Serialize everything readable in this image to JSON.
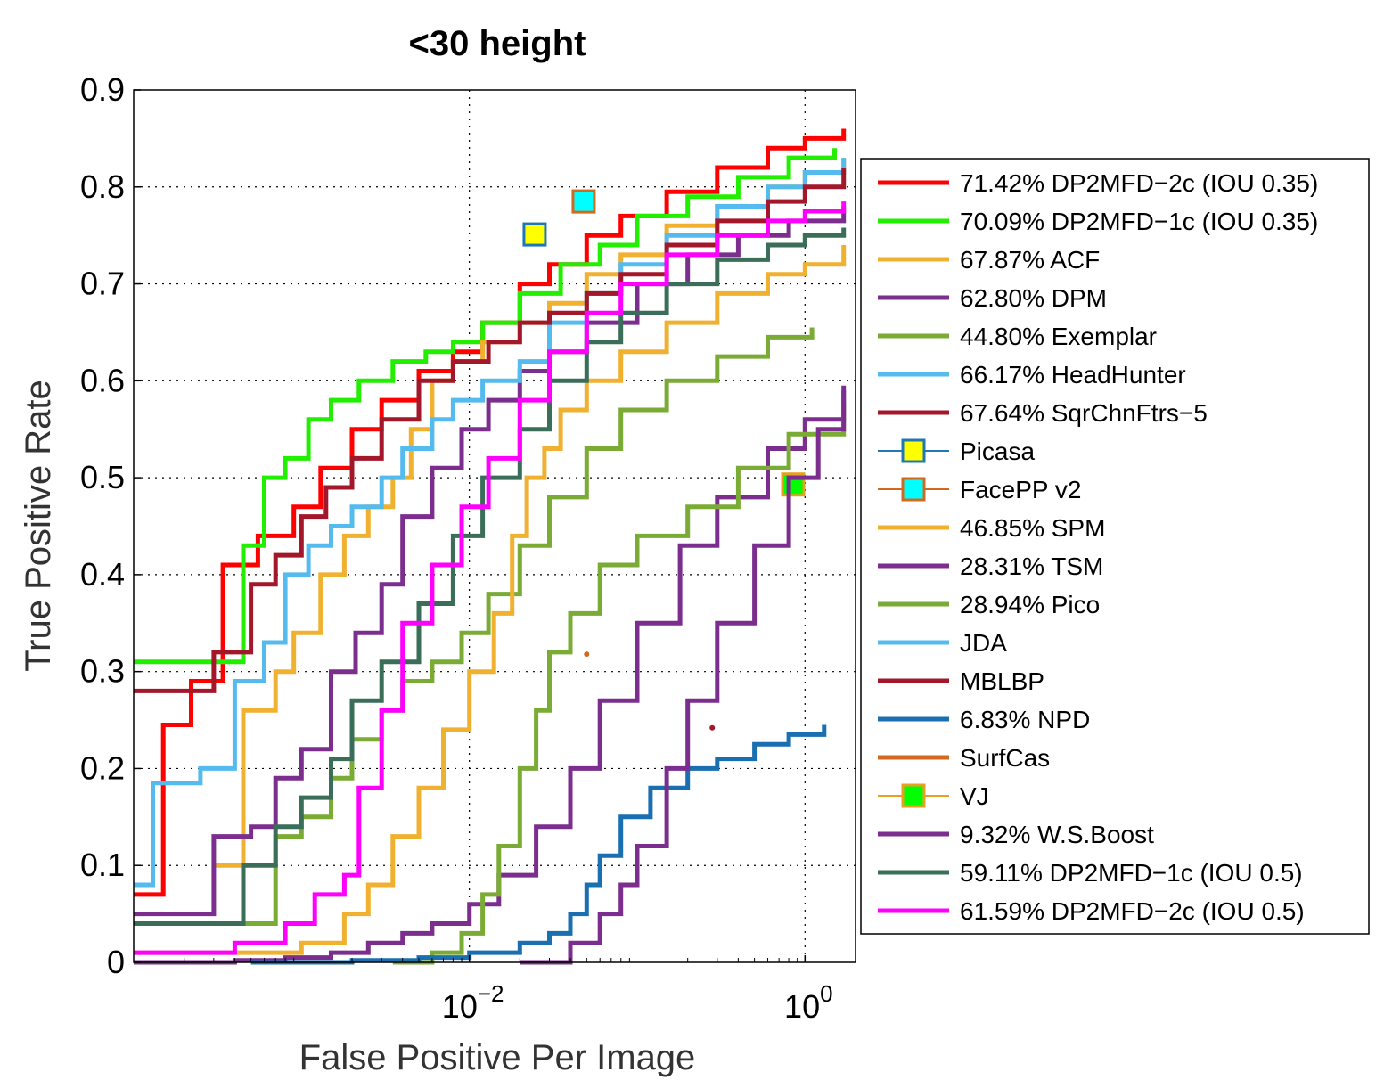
{
  "chart_data": {
    "type": "line",
    "title": "<30 height",
    "xlabel": "False Positive Per Image",
    "ylabel": "True Positive Rate",
    "xscale": "log",
    "xlim": [
      0.0001,
      2
    ],
    "ylim": [
      0,
      0.9
    ],
    "xticks": [
      {
        "value": 0.01,
        "base": "10",
        "exp": "−2"
      },
      {
        "value": 1,
        "base": "10",
        "exp": "0"
      }
    ],
    "yticks": [
      "0",
      "0.1",
      "0.2",
      "0.3",
      "0.4",
      "0.5",
      "0.6",
      "0.7",
      "0.8",
      "0.9"
    ],
    "grid": true,
    "legend_position": "right",
    "series": [
      {
        "name": "71.42% DP2MFD−2c (IOU 0.35)",
        "color": "#ff0000",
        "marker": "line",
        "x": [
          0.0001,
          0.00015,
          0.00022,
          0.00034,
          0.00055,
          0.0009,
          0.0013,
          0.002,
          0.003,
          0.005,
          0.008,
          0.012,
          0.02,
          0.03,
          0.05,
          0.08,
          0.15,
          0.3,
          0.6,
          1.0,
          1.7
        ],
        "y": [
          0.07,
          0.245,
          0.29,
          0.41,
          0.44,
          0.47,
          0.51,
          0.55,
          0.58,
          0.61,
          0.63,
          0.66,
          0.7,
          0.72,
          0.75,
          0.77,
          0.795,
          0.82,
          0.84,
          0.85,
          0.86
        ]
      },
      {
        "name": "70.09% DP2MFD−1c (IOU 0.35)",
        "color": "#22ee00",
        "marker": "line",
        "x": [
          0.0001,
          0.0003,
          0.00045,
          0.0006,
          0.0008,
          0.0011,
          0.0015,
          0.0022,
          0.0035,
          0.0055,
          0.008,
          0.012,
          0.02,
          0.035,
          0.06,
          0.1,
          0.2,
          0.4,
          0.8,
          1.5
        ],
        "y": [
          0.31,
          0.31,
          0.43,
          0.5,
          0.52,
          0.56,
          0.58,
          0.6,
          0.62,
          0.63,
          0.64,
          0.66,
          0.69,
          0.72,
          0.74,
          0.77,
          0.79,
          0.81,
          0.83,
          0.84
        ]
      },
      {
        "name": "67.87% ACF",
        "color": "#f0b030",
        "marker": "line",
        "x": [
          0.0003,
          0.00045,
          0.0007,
          0.0009,
          0.0013,
          0.0018,
          0.0025,
          0.0035,
          0.0045,
          0.006,
          0.008,
          0.012,
          0.02,
          0.03,
          0.05,
          0.08,
          0.15,
          0.3,
          0.6,
          1.0,
          1.7
        ],
        "y": [
          0.1,
          0.26,
          0.3,
          0.34,
          0.4,
          0.44,
          0.47,
          0.5,
          0.55,
          0.6,
          0.62,
          0.64,
          0.66,
          0.68,
          0.71,
          0.73,
          0.76,
          0.78,
          0.8,
          0.815,
          0.83
        ]
      },
      {
        "name": "62.80% DPM",
        "color": "#7b2e8e",
        "marker": "line",
        "x": [
          0.0001,
          0.0002,
          0.0003,
          0.0005,
          0.0007,
          0.001,
          0.0015,
          0.0021,
          0.003,
          0.004,
          0.006,
          0.009,
          0.013,
          0.02,
          0.03,
          0.05,
          0.1,
          0.2,
          0.4,
          0.8,
          1.7
        ],
        "y": [
          0.05,
          0.05,
          0.13,
          0.14,
          0.19,
          0.22,
          0.3,
          0.34,
          0.39,
          0.46,
          0.51,
          0.55,
          0.58,
          0.61,
          0.63,
          0.66,
          0.7,
          0.73,
          0.75,
          0.765,
          0.78
        ]
      },
      {
        "name": "44.80% Exemplar",
        "color": "#7aab35",
        "marker": "line",
        "x": [
          0.0001,
          0.0003,
          0.0007,
          0.001,
          0.0015,
          0.002,
          0.003,
          0.004,
          0.006,
          0.009,
          0.013,
          0.02,
          0.03,
          0.05,
          0.08,
          0.15,
          0.3,
          0.6,
          1.1
        ],
        "y": [
          0.04,
          0.04,
          0.13,
          0.15,
          0.19,
          0.23,
          0.26,
          0.29,
          0.31,
          0.34,
          0.38,
          0.43,
          0.48,
          0.53,
          0.57,
          0.6,
          0.625,
          0.645,
          0.655
        ]
      },
      {
        "name": "66.17% HeadHunter",
        "color": "#55bbee",
        "marker": "line",
        "x": [
          0.0001,
          0.00013,
          0.00025,
          0.0004,
          0.0006,
          0.0008,
          0.0011,
          0.0015,
          0.002,
          0.003,
          0.004,
          0.006,
          0.008,
          0.012,
          0.02,
          0.03,
          0.05,
          0.08,
          0.15,
          0.3,
          0.6,
          1.0,
          1.7
        ],
        "y": [
          0.08,
          0.185,
          0.2,
          0.29,
          0.33,
          0.4,
          0.43,
          0.45,
          0.47,
          0.5,
          0.53,
          0.56,
          0.58,
          0.6,
          0.62,
          0.66,
          0.69,
          0.72,
          0.75,
          0.78,
          0.8,
          0.815,
          0.83
        ]
      },
      {
        "name": "67.64% SqrChnFtrs−5",
        "color": "#a3172a",
        "marker": "line",
        "x": [
          0.0001,
          0.0002,
          0.0003,
          0.0005,
          0.0007,
          0.001,
          0.0014,
          0.002,
          0.003,
          0.005,
          0.008,
          0.013,
          0.02,
          0.03,
          0.05,
          0.08,
          0.15,
          0.3,
          0.6,
          1.0,
          1.7
        ],
        "y": [
          0.28,
          0.28,
          0.32,
          0.39,
          0.42,
          0.46,
          0.49,
          0.52,
          0.56,
          0.6,
          0.62,
          0.64,
          0.66,
          0.67,
          0.69,
          0.71,
          0.74,
          0.765,
          0.785,
          0.8,
          0.82
        ]
      },
      {
        "name": "Picasa",
        "color": "#1f77b4",
        "fill": "#ffff00",
        "marker": "square",
        "x": [
          0.0245
        ],
        "y": [
          0.751
        ]
      },
      {
        "name": "FacePP v2",
        "color": "#d2691e",
        "fill": "#00ffff",
        "marker": "square",
        "x": [
          0.048
        ],
        "y": [
          0.785
        ]
      },
      {
        "name": "46.85% SPM",
        "color": "#f0b030",
        "marker": "line",
        "x": [
          0.0001,
          0.001,
          0.0018,
          0.0025,
          0.0035,
          0.005,
          0.007,
          0.01,
          0.014,
          0.018,
          0.022,
          0.028,
          0.035,
          0.05,
          0.08,
          0.15,
          0.3,
          0.6,
          1.0,
          1.7
        ],
        "y": [
          0.01,
          0.02,
          0.05,
          0.08,
          0.13,
          0.18,
          0.24,
          0.3,
          0.36,
          0.44,
          0.5,
          0.53,
          0.57,
          0.6,
          0.63,
          0.66,
          0.69,
          0.71,
          0.72,
          0.74
        ]
      },
      {
        "name": "28.31% TSM",
        "color": "#7b2e8e",
        "marker": "line",
        "x": [
          0.0001,
          0.0004,
          0.0008,
          0.0015,
          0.0025,
          0.004,
          0.006,
          0.01,
          0.015,
          0.025,
          0.04,
          0.06,
          0.1,
          0.18,
          0.3,
          0.6,
          1.0,
          1.7
        ],
        "y": [
          0.0,
          0.002,
          0.005,
          0.01,
          0.02,
          0.03,
          0.04,
          0.06,
          0.09,
          0.14,
          0.2,
          0.27,
          0.35,
          0.43,
          0.48,
          0.53,
          0.56,
          0.59
        ]
      },
      {
        "name": "28.94% Pico",
        "color": "#7aab35",
        "marker": "line",
        "x": [
          0.0035,
          0.006,
          0.009,
          0.012,
          0.015,
          0.02,
          0.025,
          0.03,
          0.04,
          0.06,
          0.1,
          0.2,
          0.4,
          0.8,
          1.7
        ],
        "y": [
          0.0,
          0.01,
          0.03,
          0.07,
          0.12,
          0.2,
          0.26,
          0.32,
          0.36,
          0.41,
          0.44,
          0.47,
          0.51,
          0.545,
          0.575
        ]
      },
      {
        "name": "JDA",
        "color": "#55bbee",
        "marker": "line",
        "x": [
          0.0001
        ],
        "y": [
          0.0
        ]
      },
      {
        "name": "MBLBP",
        "color": "#a3172a",
        "marker": "point",
        "x": [
          0.28
        ],
        "y": [
          0.242
        ]
      },
      {
        "name": "6.83% NPD",
        "color": "#1a6fb0",
        "marker": "line",
        "x": [
          0.0005,
          0.002,
          0.005,
          0.01,
          0.02,
          0.03,
          0.04,
          0.05,
          0.06,
          0.08,
          0.12,
          0.2,
          0.3,
          0.5,
          0.8,
          1.3
        ],
        "y": [
          0.0,
          0.002,
          0.005,
          0.01,
          0.02,
          0.03,
          0.05,
          0.08,
          0.11,
          0.15,
          0.18,
          0.2,
          0.21,
          0.225,
          0.235,
          0.245
        ]
      },
      {
        "name": "SurfCas",
        "color": "#d2691e",
        "marker": "point",
        "x": [
          0.05
        ],
        "y": [
          0.318
        ]
      },
      {
        "name": "VJ",
        "color": "#e8a020",
        "fill": "#00ff00",
        "marker": "square",
        "x": [
          0.85
        ],
        "y": [
          0.493
        ]
      },
      {
        "name": "9.32% W.S.Boost",
        "color": "#7b2e8e",
        "marker": "line",
        "x": [
          0.02,
          0.04,
          0.06,
          0.08,
          0.1,
          0.15,
          0.2,
          0.3,
          0.5,
          0.8,
          1.2,
          1.7
        ],
        "y": [
          0.0,
          0.02,
          0.05,
          0.08,
          0.12,
          0.2,
          0.27,
          0.35,
          0.43,
          0.5,
          0.55,
          0.595
        ]
      },
      {
        "name": "59.11% DP2MFD−1c (IOU 0.5)",
        "color": "#3a6e58",
        "marker": "line",
        "x": [
          0.0001,
          0.0003,
          0.00045,
          0.0007,
          0.001,
          0.0015,
          0.002,
          0.003,
          0.005,
          0.008,
          0.012,
          0.02,
          0.03,
          0.05,
          0.08,
          0.15,
          0.3,
          0.6,
          1.0,
          1.7
        ],
        "y": [
          0.04,
          0.04,
          0.1,
          0.14,
          0.17,
          0.21,
          0.27,
          0.31,
          0.37,
          0.44,
          0.5,
          0.55,
          0.6,
          0.64,
          0.67,
          0.7,
          0.725,
          0.74,
          0.75,
          0.758
        ]
      },
      {
        "name": "61.59% DP2MFD−2c (IOU 0.5)",
        "color": "#ff00ff",
        "marker": "line",
        "x": [
          0.0001,
          0.0004,
          0.0008,
          0.0012,
          0.0018,
          0.0022,
          0.003,
          0.004,
          0.006,
          0.009,
          0.013,
          0.02,
          0.03,
          0.05,
          0.08,
          0.15,
          0.3,
          0.6,
          1.0,
          1.7
        ],
        "y": [
          0.01,
          0.02,
          0.04,
          0.07,
          0.09,
          0.18,
          0.26,
          0.35,
          0.41,
          0.47,
          0.52,
          0.58,
          0.63,
          0.67,
          0.7,
          0.73,
          0.75,
          0.765,
          0.775,
          0.785
        ]
      }
    ]
  }
}
